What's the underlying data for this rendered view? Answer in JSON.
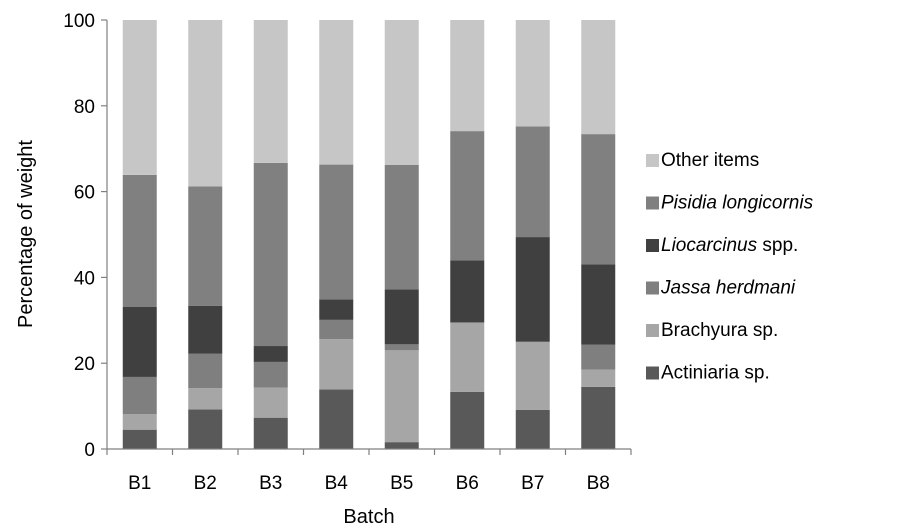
{
  "chart_data": {
    "type": "bar",
    "stacked": true,
    "title": "",
    "xlabel": "Batch",
    "ylabel": "Percentage of weight",
    "ylim": [
      0,
      100
    ],
    "yticks": [
      "0",
      "20",
      "40",
      "60",
      "80",
      "100"
    ],
    "grid": false,
    "legend_position": "right",
    "categories": [
      "B1",
      "B2",
      "B3",
      "B4",
      "B5",
      "B6",
      "B7",
      "B8"
    ],
    "series": [
      {
        "name": "Actiniaria sp.",
        "color": "#595959",
        "values": [
          4.5,
          9.2,
          7.3,
          13.9,
          1.6,
          13.3,
          9.1,
          14.5
        ]
      },
      {
        "name": "Brachyura sp.",
        "color": "#a6a6a6",
        "values": [
          3.6,
          5.0,
          7.0,
          11.7,
          21.4,
          16.2,
          15.9,
          4.0
        ]
      },
      {
        "name": "Jassa herdmani",
        "color": "#7f7f7f",
        "values": [
          8.7,
          8.0,
          6.0,
          4.5,
          1.4,
          0,
          0,
          5.8
        ]
      },
      {
        "name": "Liocarcinus spp.",
        "color": "#404040",
        "values": [
          16.3,
          11.2,
          3.7,
          4.8,
          12.8,
          14.5,
          24.4,
          18.7
        ]
      },
      {
        "name": "Pisidia longicornis",
        "color": "#808080",
        "values": [
          30.8,
          27.8,
          42.7,
          31.4,
          29.0,
          30.1,
          25.8,
          30.4
        ]
      },
      {
        "name": "Other items",
        "color": "#c6c6c6",
        "values": [
          36.1,
          38.8,
          33.3,
          33.7,
          33.8,
          25.9,
          24.8,
          26.6
        ]
      }
    ],
    "legend": [
      {
        "prefix": "",
        "italic": "",
        "suffix": "Other items"
      },
      {
        "prefix": "",
        "italic": "Pisidia longicornis",
        "suffix": ""
      },
      {
        "prefix": "",
        "italic": "Liocarcinus",
        "suffix": " spp."
      },
      {
        "prefix": "",
        "italic": "Jassa herdmani",
        "suffix": ""
      },
      {
        "prefix": "",
        "italic": "",
        "suffix": "Brachyura sp."
      },
      {
        "prefix": "",
        "italic": "",
        "suffix": "Actiniaria sp."
      }
    ],
    "legend_colors": [
      "#c6c6c6",
      "#808080",
      "#404040",
      "#7f7f7f",
      "#a6a6a6",
      "#595959"
    ]
  }
}
